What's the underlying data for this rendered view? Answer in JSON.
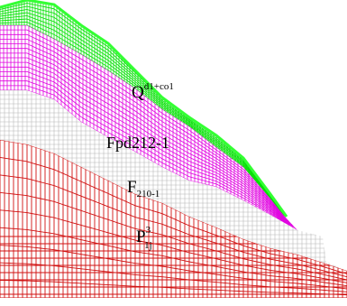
{
  "layers": {
    "quaternary": {
      "symbol": "Q",
      "superscript": "d1+co1",
      "color": "#00e000",
      "edge_color": "#33ff33"
    },
    "fpd": {
      "label": "Fpd212-1",
      "color": "#e000e0"
    },
    "fault": {
      "symbol": "F",
      "subscript": "210-1",
      "color": "#b8b8b8"
    },
    "bedrock": {
      "symbol": "P",
      "subscript": "1j",
      "superscript": "3",
      "color": "#d01010"
    }
  }
}
